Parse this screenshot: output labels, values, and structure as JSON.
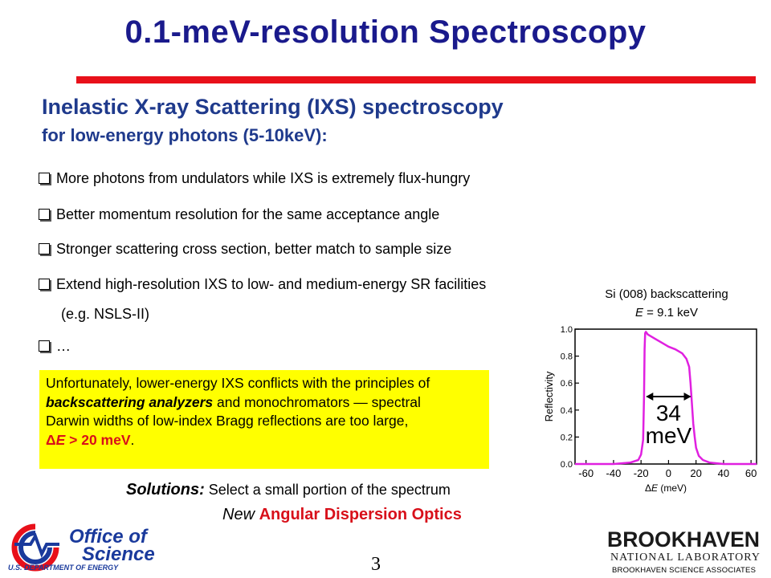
{
  "title": "0.1-meV-resolution Spectroscopy",
  "heading": "Inelastic X-ray Scattering (IXS) spectroscopy",
  "subheading": "for low-energy photons (5-10keV):",
  "bullets": [
    "More photons from undulators while IXS is extremely flux-hungry",
    "Better momentum resolution for the same acceptance angle",
    "Stronger scattering cross section, better match to sample size",
    "Extend high-resolution IXS to low- and medium-energy SR facilities",
    "…"
  ],
  "bullet_continuation": "(e.g. NSLS-II)",
  "note": {
    "line1": "Unfortunately, lower-energy IXS conflicts with the principles of",
    "line2_bold": "backscattering analyzers",
    "line2_rest": " and monochromators — spectral",
    "line3": "Darwin widths of low-index Bragg reflections are too large,",
    "line4_delta": "Δ",
    "line4_e": "E",
    "line4_value": " > 20 meV",
    "line4_end": "."
  },
  "solutions": {
    "label": "Solutions",
    "colon": ":",
    "text": " Select a small portion of the spectrum",
    "new": "New",
    "ado": "Angular Dispersion Optics"
  },
  "chart_caption": {
    "line1": "Si (008) backscattering",
    "line2_e": "E",
    "line2_rest": " = 9.1 keV"
  },
  "chart_data": {
    "type": "line",
    "title": "",
    "xlabel_delta": "Δ",
    "xlabel_e": "E",
    "xlabel_unit": "(meV)",
    "ylabel": "Reflectivity",
    "xlim": [
      -68,
      64
    ],
    "ylim": [
      0,
      1.0
    ],
    "xticks": [
      "-60",
      "-40",
      "-20",
      "0",
      "20",
      "40",
      "60"
    ],
    "xtick_values": [
      -60,
      -40,
      -20,
      0,
      20,
      40,
      60
    ],
    "yticks": [
      "0.0",
      "0.2",
      "0.4",
      "0.6",
      "0.8",
      "1.0"
    ],
    "ytick_values": [
      0,
      0.2,
      0.4,
      0.6,
      0.8,
      1.0
    ],
    "color": "#e020e0",
    "series": [
      {
        "x": [
          -68,
          -40,
          -28,
          -22,
          -20,
          -18.5,
          -17.8,
          -17.4,
          -17,
          -16.5,
          -15,
          -10,
          -5,
          0,
          5,
          10,
          13,
          15,
          16,
          17,
          18,
          19,
          20,
          22,
          25,
          30,
          40,
          64
        ],
        "values": [
          0.0,
          0.0,
          0.01,
          0.03,
          0.07,
          0.18,
          0.5,
          0.85,
          0.97,
          0.98,
          0.96,
          0.93,
          0.9,
          0.87,
          0.85,
          0.82,
          0.78,
          0.72,
          0.6,
          0.45,
          0.3,
          0.2,
          0.12,
          0.06,
          0.03,
          0.01,
          0.0,
          0.0
        ]
      }
    ],
    "annotation": {
      "value": "34",
      "unit": "meV",
      "from": -17,
      "to": 17,
      "level": 0.5
    }
  },
  "page_number": "3",
  "logos": {
    "doe_line1": "Office of",
    "doe_line2": "Science",
    "doe_line3": "U.S. DEPARTMENT OF ENERGY",
    "bnl_line1": "BROOKHAVEN",
    "bnl_line2": "NATIONAL LABORATORY"
  },
  "footer_text": "BROOKHAVEN SCIENCE ASSOCIATES"
}
